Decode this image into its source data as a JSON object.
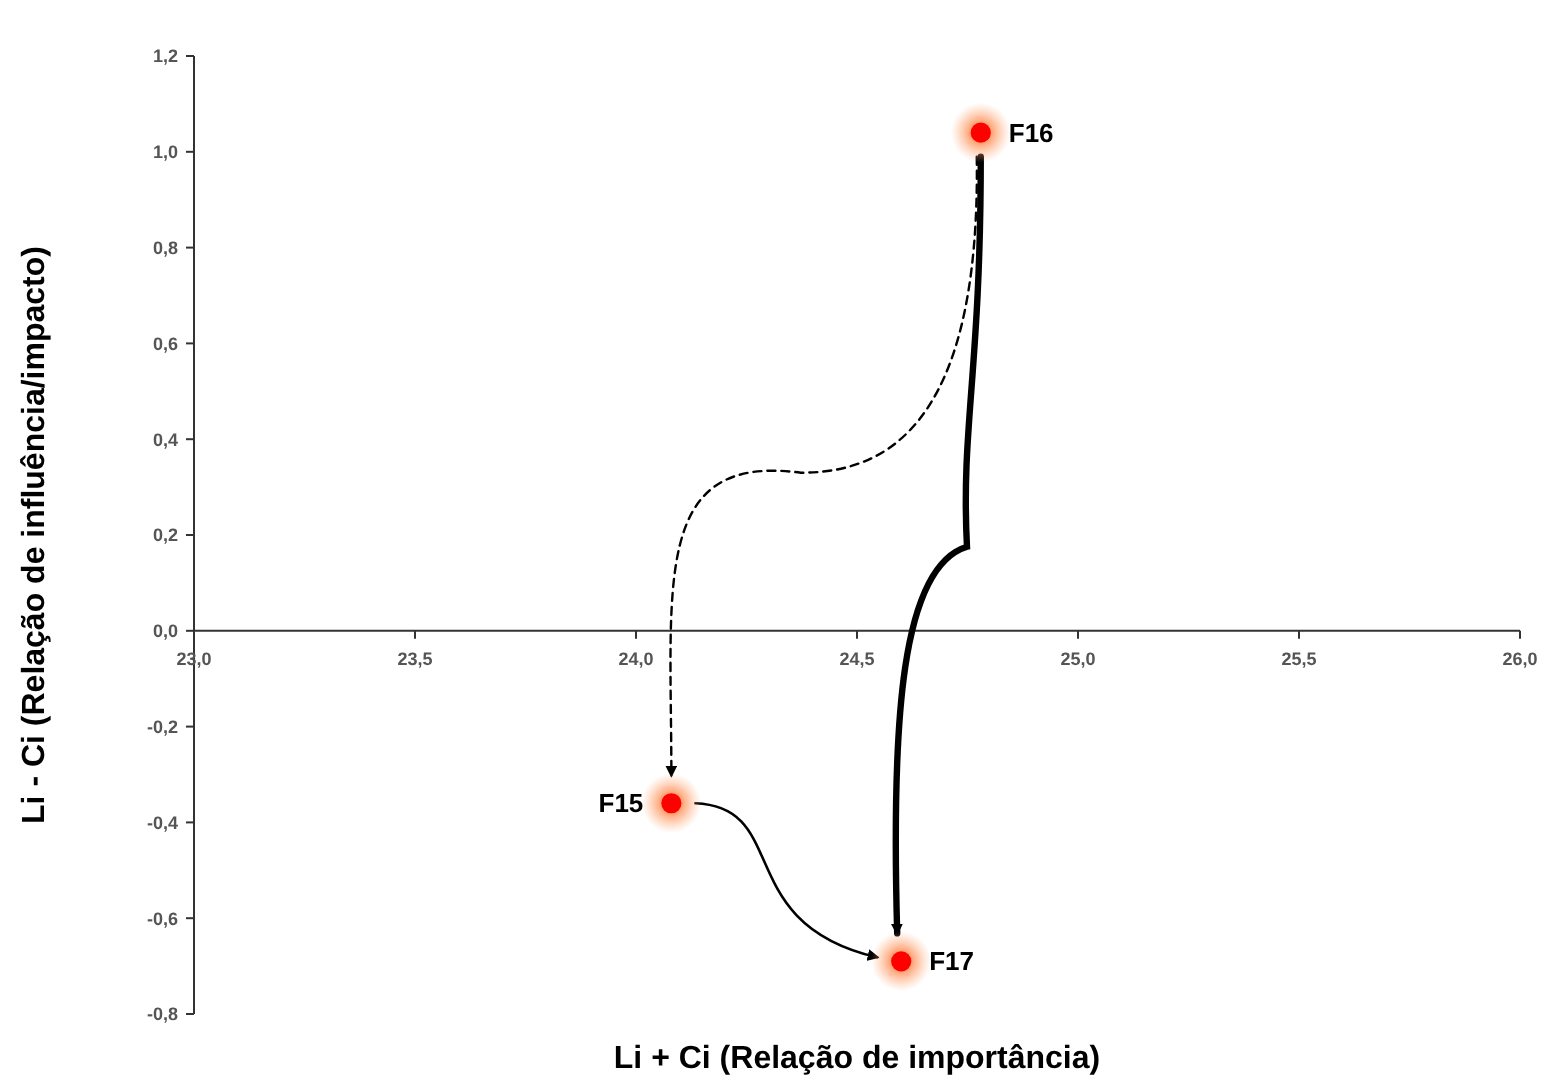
{
  "chart_data": {
    "type": "scatter",
    "xlabel": "Li + Ci (Relação de importância)",
    "ylabel": "Li - Ci (Relação de influência/impacto)",
    "x": [
      24.08,
      24.78,
      24.6
    ],
    "values": [
      -0.36,
      1.04,
      -0.69
    ],
    "color": "#ff0000",
    "marker": "circle",
    "xlim": [
      23,
      26
    ],
    "xticks": [
      {
        "value": 23,
        "label": "23,0"
      },
      {
        "value": 23.5,
        "label": "23,5"
      },
      {
        "value": 24,
        "label": "24,0"
      },
      {
        "value": 24.5,
        "label": "24,5"
      },
      {
        "value": 25,
        "label": "25,0"
      },
      {
        "value": 25.5,
        "label": "25,5"
      },
      {
        "value": 26,
        "label": "26,0"
      }
    ],
    "ylim": [
      -0.8,
      1.2
    ],
    "yticks": [
      {
        "value": -0.8,
        "label": "-0,8"
      },
      {
        "value": -0.6,
        "label": "-0,6"
      },
      {
        "value": -0.4,
        "label": "-0,4"
      },
      {
        "value": -0.2,
        "label": "-0,2"
      },
      {
        "value": 0,
        "label": "0,0"
      },
      {
        "value": 0.2,
        "label": "0,2"
      },
      {
        "value": 0.4,
        "label": "0,4"
      },
      {
        "value": 0.6,
        "label": "0,6"
      },
      {
        "value": 0.8,
        "label": "0,8"
      },
      {
        "value": 1,
        "label": "1,0"
      },
      {
        "value": 1.2,
        "label": "1,2"
      }
    ],
    "grid": false,
    "annotations": [
      {
        "text": "F15",
        "x": 24.08,
        "y": -0.36
      },
      {
        "text": "F16",
        "x": 24.78,
        "y": 1.04
      },
      {
        "text": "F17",
        "x": 24.6,
        "y": -0.69
      }
    ]
  }
}
